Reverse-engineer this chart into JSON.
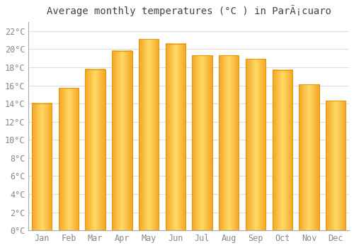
{
  "title": "Average monthly temperatures (°C ) in ParÃ¡cuaro",
  "months": [
    "Jan",
    "Feb",
    "Mar",
    "Apr",
    "May",
    "Jun",
    "Jul",
    "Aug",
    "Sep",
    "Oct",
    "Nov",
    "Dec"
  ],
  "values": [
    14.0,
    15.7,
    17.8,
    19.8,
    21.1,
    20.6,
    19.3,
    19.3,
    18.9,
    17.7,
    16.1,
    14.3
  ],
  "bar_color_left": "#F5A623",
  "bar_color_center": "#FFD966",
  "bar_color_right": "#F5A623",
  "bar_edge_color": "#E8960A",
  "background_color": "#FFFFFF",
  "grid_color": "#DDDDDD",
  "tick_color": "#888888",
  "title_color": "#444444",
  "ytick_labels": [
    "0°C",
    "2°C",
    "4°C",
    "6°C",
    "8°C",
    "10°C",
    "12°C",
    "14°C",
    "16°C",
    "18°C",
    "20°C",
    "22°C"
  ],
  "ytick_values": [
    0,
    2,
    4,
    6,
    8,
    10,
    12,
    14,
    16,
    18,
    20,
    22
  ],
  "ylim": [
    0,
    23
  ],
  "title_fontsize": 10,
  "tick_fontsize": 8.5,
  "bar_width": 0.75,
  "figsize": [
    5.0,
    3.5
  ],
  "dpi": 100
}
